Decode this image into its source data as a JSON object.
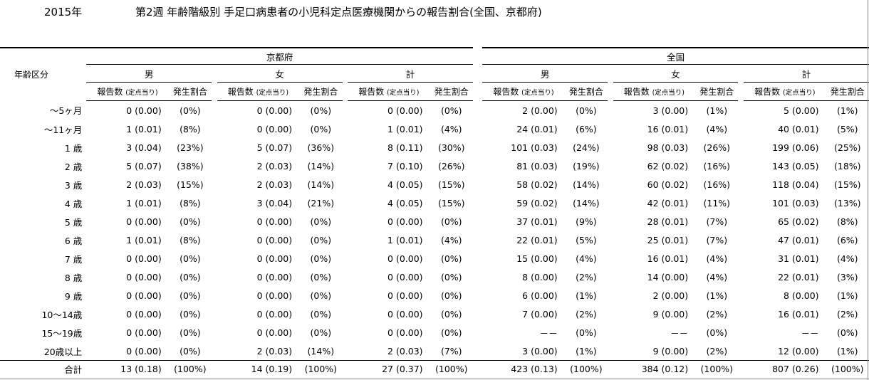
{
  "header": {
    "year": "2015年",
    "title": "第2週 年齢階級別 手足口病患者の小児科定点医療機関からの報告割合(全国、京都府)"
  },
  "table": {
    "region_labels": [
      "京都府",
      "全国"
    ],
    "sex_labels": [
      "男",
      "女",
      "計"
    ],
    "age_header": "年齢区分",
    "col_report_main": "報告数",
    "col_report_sub": "(定点当り)",
    "col_ratio": "発生割合",
    "rows": [
      {
        "age": "～5ヶ月",
        "c": [
          "0 (0.00)",
          "(0%)",
          "0 (0.00)",
          "(0%)",
          "0 (0.00)",
          "(0%)",
          "2 (0.00)",
          "(0%)",
          "3 (0.00)",
          "(1%)",
          "5 (0.00)",
          "(1%)"
        ]
      },
      {
        "age": "～11ヶ月",
        "c": [
          "1 (0.01)",
          "(8%)",
          "0 (0.00)",
          "(0%)",
          "1 (0.01)",
          "(4%)",
          "24 (0.01)",
          "(6%)",
          "16 (0.01)",
          "(4%)",
          "40 (0.01)",
          "(5%)"
        ]
      },
      {
        "age": "1 歳",
        "c": [
          "3 (0.04)",
          "(23%)",
          "5 (0.07)",
          "(36%)",
          "8 (0.11)",
          "(30%)",
          "101 (0.03)",
          "(24%)",
          "98 (0.03)",
          "(26%)",
          "199 (0.06)",
          "(25%)"
        ]
      },
      {
        "age": "2 歳",
        "c": [
          "5 (0.07)",
          "(38%)",
          "2 (0.03)",
          "(14%)",
          "7 (0.10)",
          "(26%)",
          "81 (0.03)",
          "(19%)",
          "62 (0.02)",
          "(16%)",
          "143 (0.05)",
          "(18%)"
        ]
      },
      {
        "age": "3 歳",
        "c": [
          "2 (0.03)",
          "(15%)",
          "2 (0.03)",
          "(14%)",
          "4 (0.05)",
          "(15%)",
          "58 (0.02)",
          "(14%)",
          "60 (0.02)",
          "(16%)",
          "118 (0.04)",
          "(15%)"
        ]
      },
      {
        "age": "4 歳",
        "c": [
          "1 (0.01)",
          "(8%)",
          "3 (0.04)",
          "(21%)",
          "4 (0.05)",
          "(15%)",
          "59 (0.02)",
          "(14%)",
          "42 (0.01)",
          "(11%)",
          "101 (0.03)",
          "(13%)"
        ]
      },
      {
        "age": "5 歳",
        "c": [
          "0 (0.00)",
          "(0%)",
          "0 (0.00)",
          "(0%)",
          "0 (0.00)",
          "(0%)",
          "37 (0.01)",
          "(9%)",
          "28 (0.01)",
          "(7%)",
          "65 (0.02)",
          "(8%)"
        ]
      },
      {
        "age": "6 歳",
        "c": [
          "1 (0.01)",
          "(8%)",
          "0 (0.00)",
          "(0%)",
          "1 (0.01)",
          "(4%)",
          "22 (0.01)",
          "(5%)",
          "25 (0.01)",
          "(7%)",
          "47 (0.01)",
          "(6%)"
        ]
      },
      {
        "age": "7 歳",
        "c": [
          "0 (0.00)",
          "(0%)",
          "0 (0.00)",
          "(0%)",
          "0 (0.00)",
          "(0%)",
          "15 (0.00)",
          "(4%)",
          "16 (0.01)",
          "(4%)",
          "31 (0.01)",
          "(4%)"
        ]
      },
      {
        "age": "8 歳",
        "c": [
          "0 (0.00)",
          "(0%)",
          "0 (0.00)",
          "(0%)",
          "0 (0.00)",
          "(0%)",
          "8 (0.00)",
          "(2%)",
          "14 (0.00)",
          "(4%)",
          "22 (0.01)",
          "(3%)"
        ]
      },
      {
        "age": "9 歳",
        "c": [
          "0 (0.00)",
          "(0%)",
          "0 (0.00)",
          "(0%)",
          "0 (0.00)",
          "(0%)",
          "6 (0.00)",
          "(1%)",
          "2 (0.00)",
          "(1%)",
          "8 (0.00)",
          "(1%)"
        ]
      },
      {
        "age": "10～14歳",
        "c": [
          "0 (0.00)",
          "(0%)",
          "0 (0.00)",
          "(0%)",
          "0 (0.00)",
          "(0%)",
          "7 (0.00)",
          "(2%)",
          "9 (0.00)",
          "(2%)",
          "16 (0.01)",
          "(2%)"
        ]
      },
      {
        "age": "15～19歳",
        "c": [
          "0 (0.00)",
          "(0%)",
          "0 (0.00)",
          "(0%)",
          "0 (0.00)",
          "(0%)",
          "－－",
          "(0%)",
          "－－",
          "(0%)",
          "－－",
          "(0%)"
        ]
      },
      {
        "age": "20歳以上",
        "c": [
          "0 (0.00)",
          "(0%)",
          "2 (0.03)",
          "(14%)",
          "2 (0.03)",
          "(7%)",
          "3 (0.00)",
          "(1%)",
          "9 (0.00)",
          "(2%)",
          "12 (0.00)",
          "(1%)"
        ]
      }
    ],
    "total": {
      "age": "合計",
      "c": [
        "13 (0.18)",
        "(100%)",
        "14 (0.19)",
        "(100%)",
        "27 (0.37)",
        "(100%)",
        "423 (0.13)",
        "(100%)",
        "384 (0.12)",
        "(100%)",
        "807 (0.26)",
        "(100%)"
      ]
    }
  }
}
